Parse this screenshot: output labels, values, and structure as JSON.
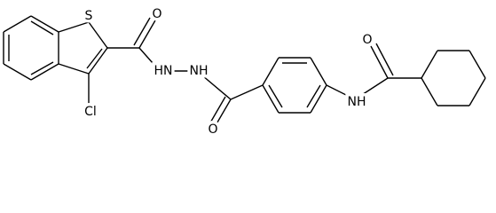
{
  "atoms": [
    {
      "label": "S"
    },
    {
      "label": "Cl"
    },
    {
      "label": "O"
    },
    {
      "label": "HN"
    },
    {
      "label": "NH"
    },
    {
      "label": "O"
    },
    {
      "label": "NH"
    },
    {
      "label": "O"
    }
  ]
}
